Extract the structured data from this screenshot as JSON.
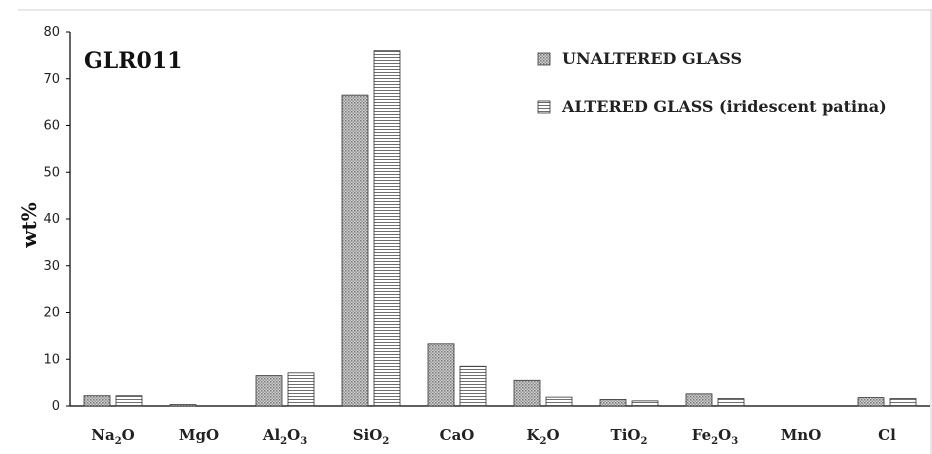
{
  "chart_data": {
    "type": "bar",
    "title": "GLR011",
    "ylabel": "wt%",
    "xlabel": "",
    "ylim": [
      0,
      80
    ],
    "yticks": [
      "0",
      "10",
      "20",
      "30",
      "40",
      "50",
      "60",
      "70",
      "80"
    ],
    "categories": [
      {
        "base": "Na",
        "sub": "2",
        "tail": "O"
      },
      {
        "base": "MgO",
        "sub": "",
        "tail": ""
      },
      {
        "base": "Al",
        "sub": "2",
        "tail": "O",
        "sub2": "3"
      },
      {
        "base": "SiO",
        "sub": "2",
        "tail": ""
      },
      {
        "base": "CaO",
        "sub": "",
        "tail": ""
      },
      {
        "base": "K",
        "sub": "2",
        "tail": "O"
      },
      {
        "base": "TiO",
        "sub": "2",
        "tail": ""
      },
      {
        "base": "Fe",
        "sub": "2",
        "tail": "O",
        "sub2": "3"
      },
      {
        "base": "MnO",
        "sub": "",
        "tail": ""
      },
      {
        "base": "Cl",
        "sub": "",
        "tail": ""
      }
    ],
    "series": [
      {
        "name": "UNALTERED GLASS",
        "pattern": "dots",
        "values": [
          2.2,
          0.3,
          6.5,
          66.5,
          13.3,
          5.5,
          1.4,
          2.6,
          0.0,
          1.8
        ]
      },
      {
        "name": "ALTERED GLASS (iridescent patina)",
        "pattern": "stripes",
        "values": [
          2.2,
          0.0,
          7.1,
          76.0,
          8.5,
          1.9,
          1.1,
          1.6,
          0.0,
          1.6
        ]
      }
    ],
    "legend_position": "top-right",
    "grid": false
  }
}
